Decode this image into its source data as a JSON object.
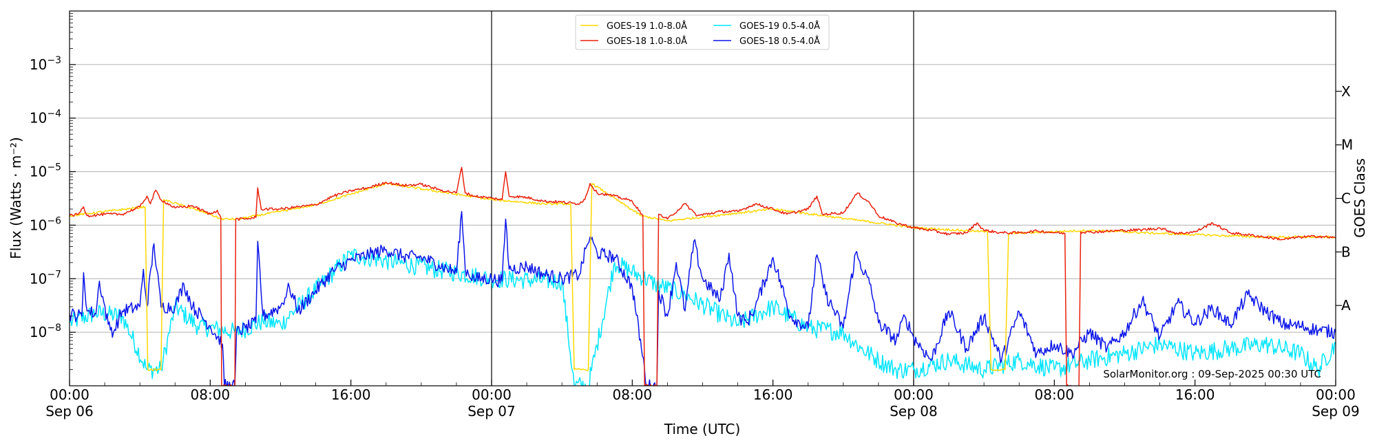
{
  "chart_data": {
    "type": "line",
    "title": "",
    "xlabel": "Time (UTC)",
    "ylabel": "Flux (Watts · m⁻²)",
    "right_label": "GOES Class",
    "yscale": "log",
    "ylim": [
      1e-09,
      0.01
    ],
    "xlim_hours": [
      0,
      72
    ],
    "x_ticks": [
      {
        "h": 0,
        "time": "00:00",
        "date": "Sep 06"
      },
      {
        "h": 8,
        "time": "08:00",
        "date": ""
      },
      {
        "h": 16,
        "time": "16:00",
        "date": ""
      },
      {
        "h": 24,
        "time": "00:00",
        "date": "Sep 07"
      },
      {
        "h": 32,
        "time": "08:00",
        "date": ""
      },
      {
        "h": 40,
        "time": "16:00",
        "date": ""
      },
      {
        "h": 48,
        "time": "00:00",
        "date": "Sep 08"
      },
      {
        "h": 56,
        "time": "08:00",
        "date": ""
      },
      {
        "h": 64,
        "time": "16:00",
        "date": ""
      },
      {
        "h": 72,
        "time": "00:00",
        "date": "Sep 09"
      }
    ],
    "y_ticks": [
      {
        "exp": -3,
        "base": "10",
        "pow": "−3"
      },
      {
        "exp": -4,
        "base": "10",
        "pow": "−4"
      },
      {
        "exp": -5,
        "base": "10",
        "pow": "−5"
      },
      {
        "exp": -6,
        "base": "10",
        "pow": "−6"
      },
      {
        "exp": -7,
        "base": "10",
        "pow": "−7"
      },
      {
        "exp": -8,
        "base": "10",
        "pow": "−8"
      }
    ],
    "goes_classes": [
      {
        "label": "X",
        "exp": -3.5
      },
      {
        "label": "M",
        "exp": -4.5
      },
      {
        "label": "C",
        "exp": -5.5
      },
      {
        "label": "B",
        "exp": -6.5
      },
      {
        "label": "A",
        "exp": -7.5
      }
    ],
    "day_boundaries_hours": [
      24,
      48
    ],
    "grid": "horizontal",
    "legend_position": "top-center",
    "annotation": "SolarMonitor.org : 09-Sep-2025 00:30 UTC",
    "series": [
      {
        "name": "GOES-19 1.0-8.0Å",
        "color": "#ffd700",
        "points": [
          [
            0,
            1.5e-06
          ],
          [
            4.3,
            2.2e-06
          ],
          [
            4.45,
            2e-09
          ],
          [
            4.6,
            2e-09
          ],
          [
            5.0,
            2e-09
          ],
          [
            5.2,
            2e-09
          ],
          [
            5.35,
            3e-06
          ],
          [
            8.0,
            1.6e-06
          ],
          [
            8.6,
            1.3e-06
          ],
          [
            9.6,
            1.3e-06
          ],
          [
            14,
            2.4e-06
          ],
          [
            18,
            6e-06
          ],
          [
            24,
            3e-06
          ],
          [
            27,
            2.5e-06
          ],
          [
            28.5,
            2.5e-06
          ],
          [
            28.7,
            2e-09
          ],
          [
            29.5,
            2e-09
          ],
          [
            29.7,
            6e-06
          ],
          [
            32.5,
            1.5e-06
          ],
          [
            34,
            1.2e-06
          ],
          [
            40,
            2e-06
          ],
          [
            48,
            9e-07
          ],
          [
            52.2,
            7.5e-07
          ],
          [
            52.4,
            2e-09
          ],
          [
            53.2,
            2e-09
          ],
          [
            53.4,
            7e-07
          ],
          [
            58,
            8e-07
          ],
          [
            62,
            7e-07
          ],
          [
            68,
            6e-07
          ],
          [
            72,
            6e-07
          ]
        ]
      },
      {
        "name": "GOES-18 1.0-8.0Å",
        "color": "#e8200c",
        "points": [
          [
            0,
            1.5e-06
          ],
          [
            0.5,
            1.6e-06
          ],
          [
            0.8,
            2.2e-06
          ],
          [
            1.0,
            1.5e-06
          ],
          [
            2,
            1.6e-06
          ],
          [
            3,
            1.6e-06
          ],
          [
            4,
            2.2e-06
          ],
          [
            4.4,
            3.5e-06
          ],
          [
            4.6,
            2.5e-06
          ],
          [
            4.9,
            4.5e-06
          ],
          [
            5.2,
            3e-06
          ],
          [
            6,
            2.1e-06
          ],
          [
            7,
            2.3e-06
          ],
          [
            8,
            1.6e-06
          ],
          [
            8.4,
            1.9e-06
          ],
          [
            8.6,
            1.4e-06
          ],
          [
            8.65,
            1e-09
          ],
          [
            9.4,
            1e-09
          ],
          [
            9.45,
            1.3e-06
          ],
          [
            10,
            1.3e-06
          ],
          [
            10.6,
            1.4e-06
          ],
          [
            10.7,
            5e-06
          ],
          [
            10.9,
            2e-06
          ],
          [
            12,
            2e-06
          ],
          [
            13,
            2.2e-06
          ],
          [
            14,
            2.4e-06
          ],
          [
            15,
            3.5e-06
          ],
          [
            16,
            4.4e-06
          ],
          [
            17,
            5e-06
          ],
          [
            18,
            6.3e-06
          ],
          [
            19,
            5.5e-06
          ],
          [
            20,
            5.8e-06
          ],
          [
            21,
            4.6e-06
          ],
          [
            22,
            4e-06
          ],
          [
            22.3,
            1.2e-05
          ],
          [
            22.5,
            4e-06
          ],
          [
            23,
            3.5e-06
          ],
          [
            24,
            3.2e-06
          ],
          [
            24.6,
            3e-06
          ],
          [
            24.8,
            1e-05
          ],
          [
            25,
            3.5e-06
          ],
          [
            26,
            3.3e-06
          ],
          [
            27,
            2.8e-06
          ],
          [
            28,
            2.7e-06
          ],
          [
            28.9,
            2.5e-06
          ],
          [
            29.3,
            3e-06
          ],
          [
            29.6,
            6e-06
          ],
          [
            30,
            4e-06
          ],
          [
            31,
            3.5e-06
          ],
          [
            32,
            2.8e-06
          ],
          [
            32.6,
            1.5e-06
          ],
          [
            32.7,
            1e-09
          ],
          [
            33.4,
            1e-09
          ],
          [
            33.5,
            1.6e-06
          ],
          [
            34,
            1.3e-06
          ],
          [
            35,
            2.5e-06
          ],
          [
            35.7,
            1.5e-06
          ],
          [
            37,
            1.8e-06
          ],
          [
            38,
            1.8e-06
          ],
          [
            39,
            2.5e-06
          ],
          [
            40,
            2e-06
          ],
          [
            40.8,
            1.6e-06
          ],
          [
            42,
            2e-06
          ],
          [
            42.5,
            3.5e-06
          ],
          [
            42.8,
            1.6e-06
          ],
          [
            44,
            1.7e-06
          ],
          [
            44.8,
            4e-06
          ],
          [
            45.5,
            2.6e-06
          ],
          [
            46,
            1.5e-06
          ],
          [
            47,
            1.1e-06
          ],
          [
            48,
            9e-07
          ],
          [
            49,
            8e-07
          ],
          [
            50,
            6.8e-07
          ],
          [
            51,
            7.2e-07
          ],
          [
            51.6,
            1.1e-06
          ],
          [
            52,
            8e-07
          ],
          [
            53,
            7.2e-07
          ],
          [
            54,
            7.2e-07
          ],
          [
            55,
            7.8e-07
          ],
          [
            56,
            7.3e-07
          ],
          [
            56.6,
            7e-07
          ],
          [
            56.7,
            1e-09
          ],
          [
            57.4,
            1e-09
          ],
          [
            57.5,
            7.5e-07
          ],
          [
            58,
            7.4e-07
          ],
          [
            60,
            8e-07
          ],
          [
            61,
            8.2e-07
          ],
          [
            62,
            8.8e-07
          ],
          [
            63,
            7e-07
          ],
          [
            64,
            7.5e-07
          ],
          [
            65,
            1.1e-06
          ],
          [
            66,
            7.2e-07
          ],
          [
            67,
            6.6e-07
          ],
          [
            68,
            6e-07
          ],
          [
            69,
            5.4e-07
          ],
          [
            70,
            6e-07
          ],
          [
            71,
            6.2e-07
          ],
          [
            72,
            5.8e-07
          ]
        ]
      },
      {
        "name": "GOES-19 0.5-4.0Å",
        "color": "#00e5ff",
        "points": [
          [
            0,
            1.5e-08
          ],
          [
            1.5,
            2.3e-08
          ],
          [
            3,
            2e-08
          ],
          [
            4.4,
            2e-09
          ],
          [
            5.2,
            2e-09
          ],
          [
            6,
            3e-08
          ],
          [
            7.3,
            1.3e-08
          ],
          [
            8,
            1.2e-08
          ],
          [
            9.5,
            1e-08
          ],
          [
            11,
            1.6e-08
          ],
          [
            12,
            1.4e-08
          ],
          [
            16,
            2.8e-07
          ],
          [
            24,
            1e-07
          ],
          [
            28,
            9e-08
          ],
          [
            28.7,
            1e-09
          ],
          [
            29.5,
            1e-09
          ],
          [
            31,
            2e-07
          ],
          [
            33.3,
            8e-08
          ],
          [
            35,
            5e-08
          ],
          [
            38,
            1.4e-08
          ],
          [
            40,
            3e-08
          ],
          [
            42,
            1.2e-08
          ],
          [
            44,
            1e-08
          ],
          [
            45,
            5e-09
          ],
          [
            46,
            3e-09
          ],
          [
            47,
            2e-09
          ],
          [
            48,
            2e-09
          ],
          [
            50,
            3e-09
          ],
          [
            52,
            2e-09
          ],
          [
            54,
            3e-09
          ],
          [
            56,
            2e-09
          ],
          [
            58,
            3e-09
          ],
          [
            60,
            4e-09
          ],
          [
            62,
            6e-09
          ],
          [
            64,
            4e-09
          ],
          [
            66,
            5e-09
          ],
          [
            68,
            6e-09
          ],
          [
            70,
            4e-09
          ],
          [
            71,
            2e-09
          ],
          [
            72,
            6e-09
          ]
        ]
      },
      {
        "name": "GOES-18 0.5-4.0Å",
        "color": "#0a14e8",
        "points": [
          [
            0,
            2.2e-08
          ],
          [
            0.7,
            2e-08
          ],
          [
            0.8,
            1.3e-07
          ],
          [
            1.0,
            2.5e-08
          ],
          [
            1.5,
            2.2e-08
          ],
          [
            1.7,
            9e-08
          ],
          [
            2.2,
            1.4e-08
          ],
          [
            2.5,
            1e-08
          ],
          [
            3,
            2.5e-08
          ],
          [
            4,
            3e-08
          ],
          [
            4.2,
            1.5e-07
          ],
          [
            4.4,
            3e-08
          ],
          [
            4.8,
            4.5e-07
          ],
          [
            5.2,
            3e-08
          ],
          [
            6,
            3e-08
          ],
          [
            6.5,
            8e-08
          ],
          [
            7,
            3e-08
          ],
          [
            8,
            1.3e-08
          ],
          [
            8.7,
            6e-09
          ],
          [
            8.8,
            1e-09
          ],
          [
            9.4,
            1e-09
          ],
          [
            9.5,
            1e-08
          ],
          [
            10,
            1.2e-08
          ],
          [
            10.6,
            1.5e-08
          ],
          [
            10.7,
            5e-07
          ],
          [
            11,
            2e-08
          ],
          [
            12,
            3e-08
          ],
          [
            12.5,
            7e-08
          ],
          [
            13,
            2.5e-08
          ],
          [
            14,
            6e-08
          ],
          [
            15,
            1.4e-07
          ],
          [
            16,
            2.2e-07
          ],
          [
            17,
            2.8e-07
          ],
          [
            18,
            3.5e-07
          ],
          [
            19,
            2.6e-07
          ],
          [
            20,
            2.5e-07
          ],
          [
            21,
            1.8e-07
          ],
          [
            22,
            1.3e-07
          ],
          [
            22.3,
            1.8e-06
          ],
          [
            22.5,
            1.5e-07
          ],
          [
            23,
            1e-07
          ],
          [
            24,
            1e-07
          ],
          [
            24.6,
            9e-08
          ],
          [
            24.8,
            1.3e-06
          ],
          [
            25,
            1.5e-07
          ],
          [
            26,
            1.7e-07
          ],
          [
            27,
            1.2e-07
          ],
          [
            28,
            1e-07
          ],
          [
            29,
            1.2e-07
          ],
          [
            29.4,
            4e-07
          ],
          [
            29.6,
            6e-07
          ],
          [
            30,
            3e-07
          ],
          [
            31,
            2.5e-07
          ],
          [
            32,
            7e-08
          ],
          [
            32.7,
            2e-09
          ],
          [
            32.8,
            1e-09
          ],
          [
            33.4,
            1e-09
          ],
          [
            33.5,
            6e-08
          ],
          [
            34,
            2e-08
          ],
          [
            34.5,
            2e-07
          ],
          [
            35,
            2.5e-08
          ],
          [
            35.5,
            5e-07
          ],
          [
            36,
            1e-07
          ],
          [
            37,
            4e-08
          ],
          [
            37.5,
            3e-07
          ],
          [
            38,
            2e-08
          ],
          [
            38.5,
            1.5e-08
          ],
          [
            39,
            3e-08
          ],
          [
            40,
            2.5e-07
          ],
          [
            41,
            2e-08
          ],
          [
            42,
            1.2e-08
          ],
          [
            42.5,
            2.8e-07
          ],
          [
            43,
            5e-08
          ],
          [
            44,
            1.2e-08
          ],
          [
            44.7,
            3e-07
          ],
          [
            45.5,
            8e-08
          ],
          [
            46,
            1.5e-08
          ],
          [
            47,
            7e-09
          ],
          [
            47.5,
            2e-08
          ],
          [
            48,
            8e-09
          ],
          [
            49,
            3e-09
          ],
          [
            50,
            2.5e-08
          ],
          [
            51,
            5e-09
          ],
          [
            52,
            2e-08
          ],
          [
            53,
            3e-09
          ],
          [
            54,
            2.4e-08
          ],
          [
            55,
            4e-09
          ],
          [
            56,
            6e-09
          ],
          [
            57,
            4e-09
          ],
          [
            58,
            1e-08
          ],
          [
            59,
            5e-09
          ],
          [
            60,
            1e-08
          ],
          [
            61,
            4e-08
          ],
          [
            62,
            8e-09
          ],
          [
            63,
            3.5e-08
          ],
          [
            64,
            1.5e-08
          ],
          [
            65,
            2.8e-08
          ],
          [
            66,
            1.4e-08
          ],
          [
            67,
            5e-08
          ],
          [
            68,
            2.5e-08
          ],
          [
            69,
            1.4e-08
          ],
          [
            70,
            1.3e-08
          ],
          [
            71,
            1.1e-08
          ],
          [
            72,
            1e-08
          ]
        ]
      }
    ]
  }
}
